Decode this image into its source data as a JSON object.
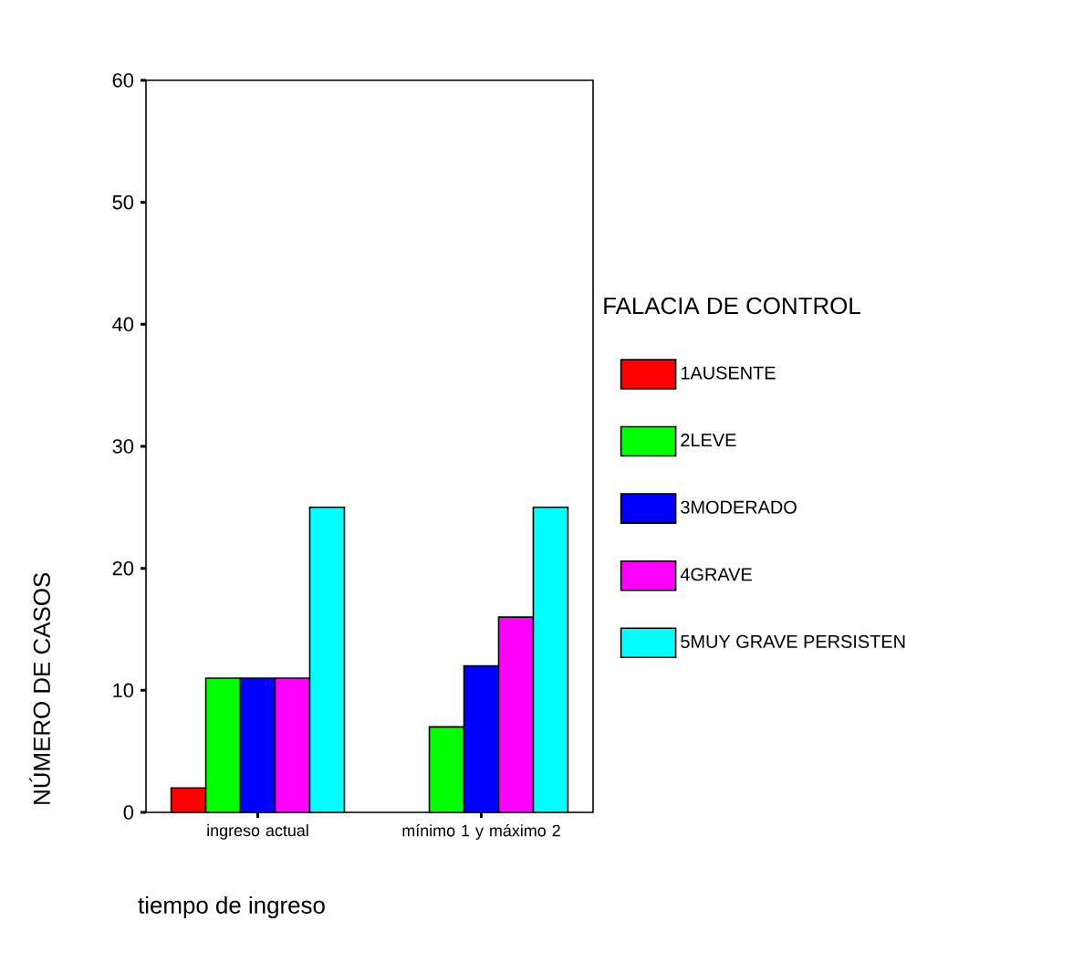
{
  "chart_data": {
    "type": "bar",
    "xlabel": "tiempo de ingreso",
    "ylabel": "NÚMERO DE CASOS",
    "legend_title": "FALACIA DE CONTROL",
    "legend": "right",
    "categories": [
      "ingreso actual",
      "mínimo 1 y máximo 2"
    ],
    "series": [
      {
        "name": "1AUSENTE",
        "color": "#ff0000",
        "values": [
          2,
          null
        ]
      },
      {
        "name": "2LEVE",
        "color": "#00ff00",
        "values": [
          11,
          7
        ]
      },
      {
        "name": "3MODERADO",
        "color": "#0000ff",
        "values": [
          11,
          12
        ]
      },
      {
        "name": "4GRAVE",
        "color": "#ff00ff",
        "values": [
          11,
          16
        ]
      },
      {
        "name": "5MUY GRAVE PERSISTEN",
        "color": "#00ffff",
        "values": [
          25,
          25
        ]
      }
    ],
    "ylim": [
      0,
      60
    ],
    "yticks": [
      0,
      10,
      20,
      30,
      40,
      50,
      60
    ]
  }
}
